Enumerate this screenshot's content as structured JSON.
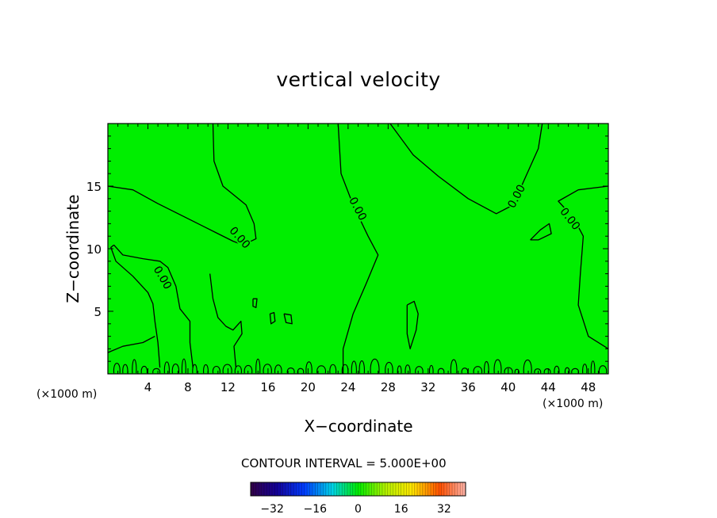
{
  "chart_data": {
    "type": "contour",
    "title": "vertical velocity",
    "xlabel": "X−coordinate",
    "ylabel": "Z−coordinate",
    "x_unit_label": "(×1000 m)",
    "xlim": [
      0,
      50
    ],
    "ylim": [
      0,
      20
    ],
    "x_ticks": [
      4,
      8,
      12,
      16,
      20,
      24,
      28,
      32,
      36,
      40,
      44,
      48
    ],
    "y_ticks": [
      5,
      10,
      15
    ],
    "fill_color": "#00ee00",
    "contour_label": "0.00",
    "contour_interval_text": "CONTOUR INTERVAL = 5.000E+00",
    "colorbar": {
      "range": [
        -40,
        40
      ],
      "tick_labels": [
        "−32",
        "−16",
        "0",
        "16",
        "32"
      ],
      "tick_values": [
        -32,
        -16,
        0,
        16,
        32
      ]
    },
    "zero_contours": [
      {
        "points": [
          [
            10.5,
            20
          ],
          [
            10.6,
            17
          ],
          [
            11.5,
            15
          ],
          [
            13.8,
            13.5
          ],
          [
            14.6,
            12
          ],
          [
            14.8,
            10.8
          ],
          [
            13.5,
            10.3
          ],
          [
            12.5,
            10.6
          ],
          [
            11,
            11.2
          ],
          [
            8.5,
            12.2
          ],
          [
            5,
            13.6
          ],
          [
            2.5,
            14.7
          ],
          [
            0,
            15
          ]
        ]
      },
      {
        "points": [
          [
            23,
            20
          ],
          [
            23.3,
            16
          ],
          [
            24.5,
            13.5
          ],
          [
            26,
            11
          ],
          [
            27,
            9.5
          ],
          [
            25.8,
            7.2
          ],
          [
            24.5,
            4.8
          ],
          [
            23.5,
            2
          ],
          [
            23.5,
            0
          ]
        ]
      },
      {
        "points": [
          [
            28.2,
            20
          ],
          [
            30.5,
            17.5
          ],
          [
            33,
            15.8
          ],
          [
            36,
            14
          ],
          [
            38.8,
            12.8
          ],
          [
            40.5,
            13.5
          ],
          [
            41.6,
            15.5
          ],
          [
            43,
            18
          ],
          [
            43.4,
            20
          ]
        ]
      },
      {
        "points": [
          [
            50,
            15
          ],
          [
            47,
            14.7
          ],
          [
            45,
            13.8
          ],
          [
            46.5,
            12.5
          ],
          [
            47.5,
            11
          ],
          [
            47.2,
            8
          ],
          [
            47,
            5.5
          ],
          [
            48,
            3
          ],
          [
            50,
            2
          ]
        ]
      },
      {
        "points": [
          [
            0.6,
            10.3
          ],
          [
            1.5,
            9.5
          ],
          [
            3.5,
            9.2
          ],
          [
            5.2,
            9
          ],
          [
            6,
            8.5
          ],
          [
            6.8,
            7
          ],
          [
            7.2,
            5.2
          ],
          [
            8.2,
            4.2
          ],
          [
            8.2,
            2.5
          ],
          [
            8.5,
            0.5
          ]
        ]
      },
      {
        "points": [
          [
            0.6,
            10.3
          ],
          [
            0.3,
            10.1
          ],
          [
            0.8,
            9
          ],
          [
            2.5,
            7.8
          ],
          [
            4,
            6.5
          ],
          [
            4.5,
            5.6
          ],
          [
            4.7,
            4.2
          ],
          [
            5,
            2.5
          ],
          [
            5.2,
            0.5
          ]
        ]
      },
      {
        "points": [
          [
            10.2,
            8
          ],
          [
            10.5,
            6
          ],
          [
            11,
            4.5
          ],
          [
            11.8,
            3.8
          ],
          [
            12.5,
            3.5
          ],
          [
            13.3,
            4.2
          ],
          [
            13.4,
            3.2
          ],
          [
            12.6,
            2.2
          ],
          [
            12.8,
            0.5
          ]
        ]
      },
      {
        "points": [
          [
            0,
            1.7
          ],
          [
            1.5,
            2.2
          ],
          [
            3.5,
            2.5
          ],
          [
            4.7,
            3
          ]
        ]
      },
      {
        "points": [
          [
            42.2,
            10.7
          ],
          [
            43.2,
            11.5
          ],
          [
            44.1,
            12
          ],
          [
            44.3,
            11.2
          ],
          [
            43,
            10.7
          ],
          [
            42.2,
            10.7
          ]
        ]
      },
      {
        "points": [
          [
            29.9,
            5.5
          ],
          [
            30.6,
            5.8
          ],
          [
            31,
            4.8
          ],
          [
            30.8,
            3.5
          ],
          [
            30.2,
            2
          ],
          [
            29.9,
            3.2
          ],
          [
            29.9,
            5.5
          ]
        ]
      },
      {
        "points": [
          [
            14.5,
            6
          ],
          [
            14.9,
            6
          ],
          [
            14.8,
            5.3
          ],
          [
            14.5,
            5.4
          ],
          [
            14.5,
            6
          ]
        ]
      },
      {
        "points": [
          [
            16.2,
            4.8
          ],
          [
            16.6,
            4.9
          ],
          [
            16.7,
            4.2
          ],
          [
            16.3,
            4
          ],
          [
            16.2,
            4.8
          ]
        ]
      },
      {
        "points": [
          [
            17.6,
            4.8
          ],
          [
            18.3,
            4.7
          ],
          [
            18.4,
            4
          ],
          [
            17.8,
            4.1
          ],
          [
            17.6,
            4.8
          ]
        ]
      }
    ]
  }
}
